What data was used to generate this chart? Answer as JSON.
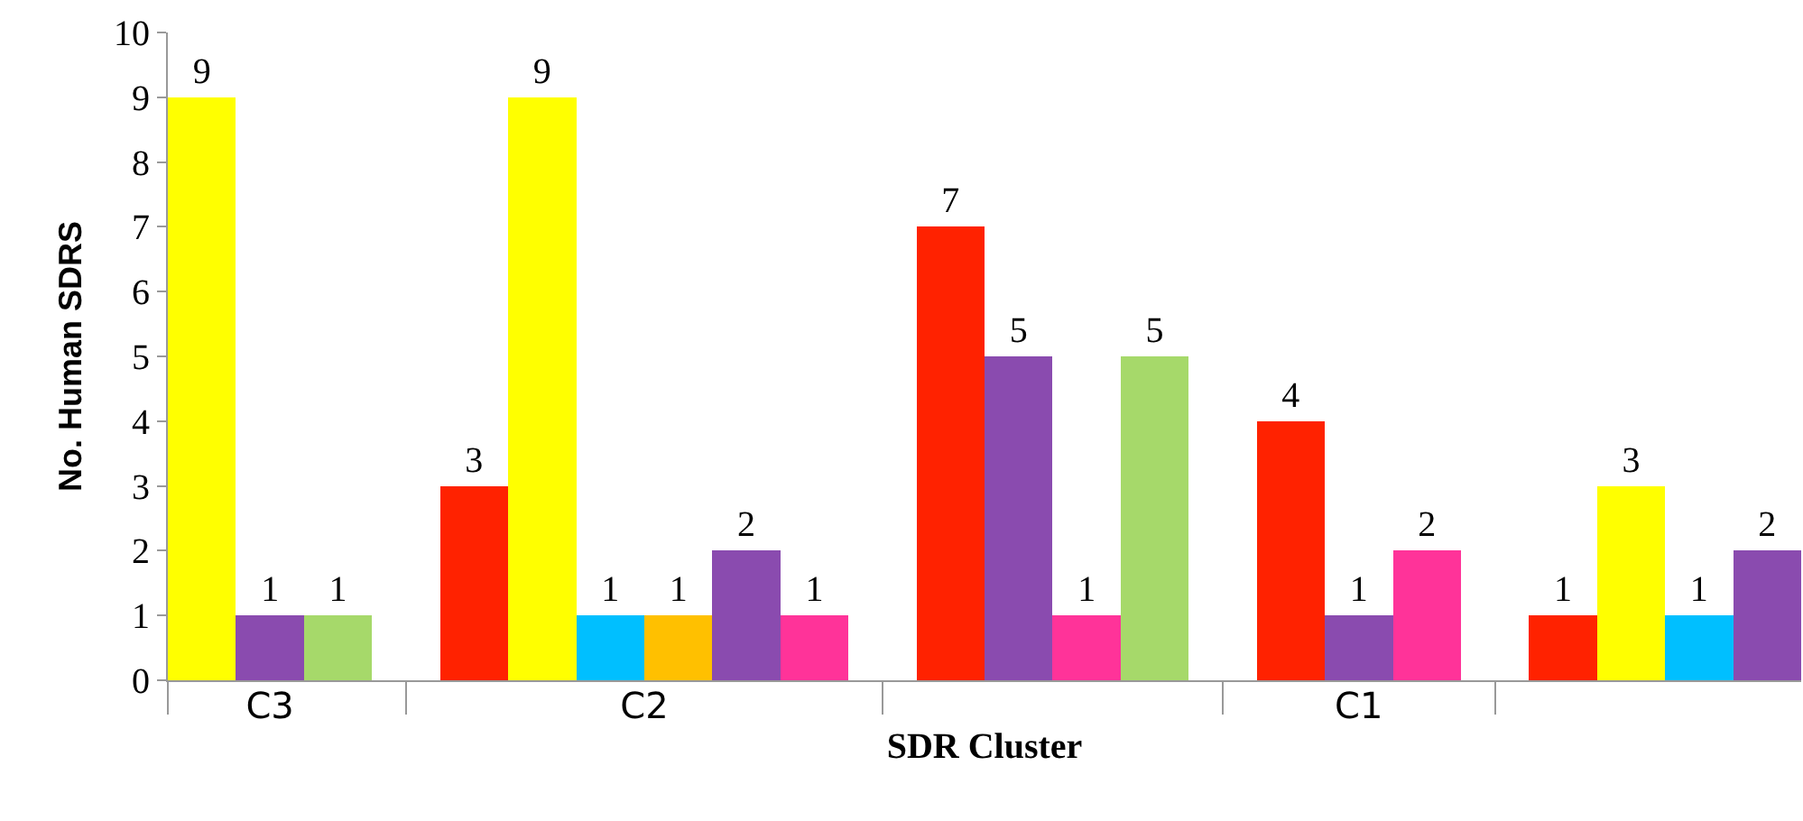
{
  "chart_data": {
    "type": "bar",
    "xlabel": "SDR Cluster",
    "ylabel": "No. Human SDRS",
    "categories": [
      "C3",
      "C2",
      null,
      "C1",
      null
    ],
    "series": [
      {
        "color": "#ff2200",
        "values": [
          null,
          3,
          7,
          4,
          1
        ]
      },
      {
        "color": "#ffff00",
        "values": [
          9,
          9,
          null,
          null,
          3
        ]
      },
      {
        "color": "#00bfff",
        "values": [
          null,
          1,
          null,
          null,
          1
        ]
      },
      {
        "color": "#ffc000",
        "values": [
          null,
          1,
          null,
          null,
          null
        ]
      },
      {
        "color": "#8a4baf",
        "values": [
          1,
          2,
          5,
          1,
          2
        ]
      },
      {
        "color": "#ff3399",
        "values": [
          null,
          1,
          1,
          2,
          null
        ]
      },
      {
        "color": "#a6d96a",
        "values": [
          1,
          null,
          5,
          null,
          null
        ]
      }
    ],
    "ylim": [
      0,
      10
    ],
    "yticks": [
      0,
      1,
      2,
      3,
      4,
      5,
      6,
      7,
      8,
      9,
      10
    ],
    "grid": false,
    "data_labels": true
  }
}
